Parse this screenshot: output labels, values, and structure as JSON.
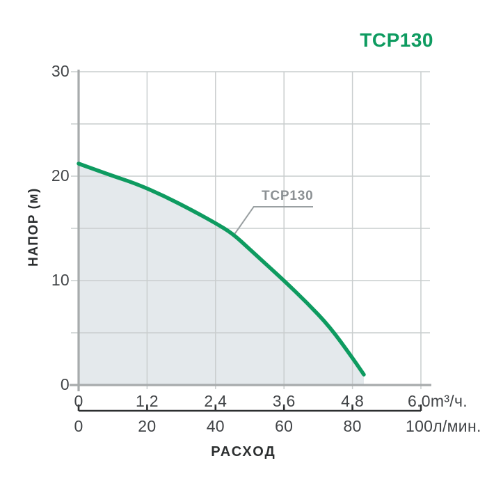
{
  "page": {
    "title": "TCP130"
  },
  "colors": {
    "accent_green": "#0e9b60",
    "curve_green": "#0e9b60",
    "area_fill": "#e4e9ec",
    "grid_gray": "#c9cdce",
    "axis_gray": "#a7abac",
    "tick_text": "#414447",
    "dark_text": "#2c2f30",
    "annotation_text": "#8b9093",
    "leader_line": "#9aa0a2"
  },
  "chart_data": {
    "type": "area",
    "title": "TCP130",
    "xlabel": "РАСХОД",
    "ylabel": "НАПОР (м)",
    "grid": true,
    "x_axis_primary": {
      "unit": "m³/ч.",
      "range": [
        0,
        6.0
      ]
    },
    "x_axis_secondary": {
      "unit": "л/мин.",
      "range": [
        0,
        100
      ]
    },
    "y_axis": {
      "unit": "м",
      "range": [
        0,
        30
      ],
      "grid_step": 5
    },
    "x_tick_values_m3h": [
      0,
      1.2,
      2.4,
      3.6,
      4.8,
      6.0
    ],
    "x_tick_labels_m3h": [
      "0",
      "1.2",
      "2.4",
      "3.6",
      "4.8",
      "6.0m³/ч."
    ],
    "x_tick_values_lmin": [
      0,
      20,
      40,
      60,
      80,
      100
    ],
    "x_tick_labels_lmin": [
      "0",
      "20",
      "40",
      "60",
      "80",
      "100л/мин."
    ],
    "y_tick_values": [
      0,
      10,
      20,
      30
    ],
    "y_tick_labels": [
      "0",
      "10",
      "20",
      "30"
    ],
    "series": [
      {
        "name": "TCP130",
        "x_m3h": [
          0,
          0.5,
          1.0,
          1.5,
          2.0,
          2.4,
          2.7,
          3.0,
          3.3,
          3.6,
          4.0,
          4.4,
          4.8,
          5.0
        ],
        "y_m": [
          21.2,
          20.2,
          19.3,
          18.1,
          16.7,
          15.5,
          14.5,
          13.0,
          11.5,
          10.0,
          7.9,
          5.6,
          2.6,
          1.0
        ]
      }
    ],
    "annotation": {
      "label": "TCP130",
      "target_x_m3h": 2.74,
      "target_y_m": 14.5
    }
  }
}
